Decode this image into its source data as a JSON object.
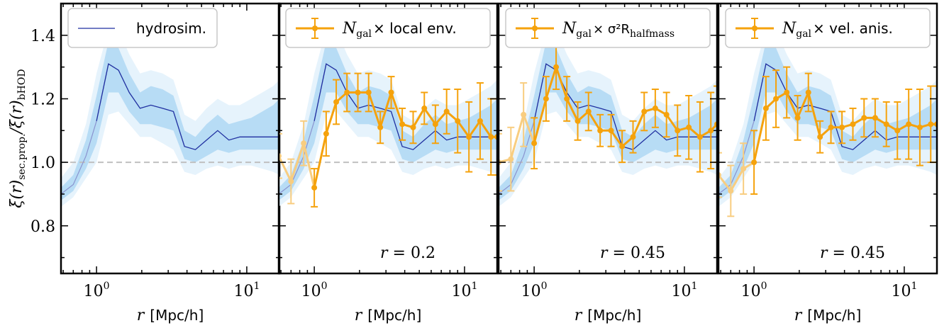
{
  "colors": {
    "hydro_line": "#1f2fa0",
    "hydro_band_inner": "#b7dcf5",
    "hydro_band_outer": "#e6f3fc",
    "orange": "#f5a20c",
    "orange_faint": "#f8cd80",
    "ref_line": "#c0c0c0"
  },
  "ylabel": "ξ(r)sec.prop./ξ(r)bHOD",
  "y_ticks": [
    "0.8",
    "1.0",
    "1.2",
    "1.4"
  ],
  "chart_data": [
    {
      "type": "line",
      "xlabel_var": "r",
      "xlabel_unit": "[Mpc/h]",
      "x_ticks": [
        "10",
        "10"
      ],
      "x_tick_exps": [
        "0",
        "1"
      ],
      "xscale": "log",
      "xlim": [
        0.58,
        16.5
      ],
      "ylim": [
        0.65,
        1.5
      ],
      "legend": {
        "label": "hydrosim.",
        "placement": "top-left"
      },
      "annotation": "",
      "series": []
    },
    {
      "type": "line",
      "xlabel_var": "r",
      "xlabel_unit": "[Mpc/h]",
      "x_ticks": [
        "10",
        "10"
      ],
      "x_tick_exps": [
        "0",
        "1"
      ],
      "xscale": "log",
      "xlim": [
        0.58,
        16.5
      ],
      "ylim": [
        0.65,
        1.5
      ],
      "legend": {
        "math": "N",
        "sub": "gal",
        "rest": "× local env.",
        "placement": "top"
      },
      "annotation": "r = 0.2",
      "series": [
        {
          "x": [
            0.58,
            0.7,
            0.85,
            1.0,
            1.2,
            1.4,
            1.65,
            1.95,
            2.3,
            2.75,
            3.25,
            3.85,
            4.55,
            5.4,
            6.4,
            7.6,
            9.0,
            10.7,
            12.7,
            15.0,
            16.5
          ],
          "y": [
            1.02,
            0.94,
            1.06,
            0.92,
            1.09,
            1.19,
            1.22,
            1.22,
            1.22,
            1.11,
            1.22,
            1.12,
            1.11,
            1.17,
            1.12,
            1.16,
            1.13,
            1.08,
            1.13,
            1.08,
            1.08
          ],
          "err": [
            0.07,
            0.07,
            0.07,
            0.06,
            0.07,
            0.07,
            0.06,
            0.06,
            0.06,
            0.05,
            0.05,
            0.05,
            0.05,
            0.05,
            0.06,
            0.07,
            0.1,
            0.11,
            0.12,
            0.12,
            0.12
          ]
        }
      ]
    },
    {
      "type": "line",
      "xlabel_var": "r",
      "xlabel_unit": "[Mpc/h]",
      "x_ticks": [
        "10",
        "10"
      ],
      "x_tick_exps": [
        "0",
        "1"
      ],
      "xscale": "log",
      "xlim": [
        0.58,
        16.5
      ],
      "ylim": [
        0.65,
        1.5
      ],
      "legend": {
        "math": "N",
        "sub": "gal",
        "rest": "× σ²R",
        "sub2": "halfmass",
        "placement": "top"
      },
      "annotation": "r = 0.45",
      "series": [
        {
          "x": [
            0.58,
            0.7,
            0.85,
            1.0,
            1.2,
            1.4,
            1.65,
            1.95,
            2.3,
            2.75,
            3.25,
            3.85,
            4.55,
            5.4,
            6.4,
            7.6,
            9.0,
            10.7,
            12.7,
            15.0,
            16.5
          ],
          "y": [
            1.0,
            1.01,
            1.15,
            1.06,
            1.2,
            1.3,
            1.2,
            1.13,
            1.16,
            1.1,
            1.1,
            1.05,
            1.08,
            1.16,
            1.17,
            1.15,
            1.1,
            1.11,
            1.08,
            1.1,
            1.12
          ],
          "err": [
            0.09,
            0.1,
            0.1,
            0.08,
            0.07,
            0.07,
            0.07,
            0.06,
            0.06,
            0.05,
            0.05,
            0.05,
            0.05,
            0.06,
            0.06,
            0.07,
            0.08,
            0.1,
            0.11,
            0.12,
            0.12
          ]
        }
      ]
    },
    {
      "type": "line",
      "xlabel_var": "r",
      "xlabel_unit": "[Mpc/h]",
      "x_ticks": [
        "10",
        "10"
      ],
      "x_tick_exps": [
        "0",
        "1"
      ],
      "xscale": "log",
      "xlim": [
        0.58,
        16.5
      ],
      "ylim": [
        0.65,
        1.5
      ],
      "legend": {
        "math": "N",
        "sub": "gal",
        "rest": "× vel. anis.",
        "placement": "top"
      },
      "annotation": "r = 0.45",
      "series": [
        {
          "x": [
            0.58,
            0.7,
            0.85,
            1.0,
            1.2,
            1.4,
            1.65,
            1.95,
            2.3,
            2.75,
            3.25,
            3.85,
            4.55,
            5.4,
            6.4,
            7.6,
            9.0,
            10.7,
            12.7,
            15.0,
            16.5
          ],
          "y": [
            0.96,
            0.91,
            0.98,
            1.0,
            1.17,
            1.2,
            1.22,
            1.14,
            1.22,
            1.08,
            1.11,
            1.11,
            1.12,
            1.14,
            1.14,
            1.12,
            1.1,
            1.12,
            1.11,
            1.12,
            1.12
          ],
          "err": [
            0.07,
            0.08,
            0.08,
            0.1,
            0.1,
            0.09,
            0.08,
            0.07,
            0.06,
            0.05,
            0.05,
            0.05,
            0.05,
            0.06,
            0.06,
            0.07,
            0.09,
            0.11,
            0.12,
            0.12,
            0.12
          ]
        }
      ]
    }
  ],
  "hydro_reference": {
    "x": [
      0.58,
      0.7,
      0.85,
      1.0,
      1.2,
      1.4,
      1.65,
      1.95,
      2.3,
      2.75,
      3.25,
      3.85,
      4.55,
      5.4,
      6.4,
      7.6,
      9.0,
      10.7,
      12.7,
      15.0,
      16.5
    ],
    "y": [
      0.9,
      0.93,
      1.02,
      1.13,
      1.31,
      1.29,
      1.22,
      1.17,
      1.18,
      1.17,
      1.16,
      1.05,
      1.04,
      1.07,
      1.1,
      1.07,
      1.08,
      1.08,
      1.08,
      1.08,
      1.08
    ],
    "inner_lo": [
      0.88,
      0.91,
      0.98,
      1.06,
      1.22,
      1.22,
      1.16,
      1.12,
      1.12,
      1.11,
      1.1,
      1.01,
      1.0,
      1.02,
      1.04,
      1.03,
      1.04,
      1.04,
      1.04,
      1.04,
      1.04
    ],
    "inner_hi": [
      0.92,
      0.96,
      1.07,
      1.21,
      1.38,
      1.36,
      1.28,
      1.22,
      1.24,
      1.23,
      1.21,
      1.1,
      1.08,
      1.12,
      1.15,
      1.12,
      1.13,
      1.14,
      1.16,
      1.18,
      1.2
    ],
    "outer_lo": [
      0.86,
      0.89,
      0.95,
      1.0,
      1.15,
      1.16,
      1.12,
      1.08,
      1.08,
      1.06,
      1.04,
      0.97,
      0.96,
      0.98,
      0.99,
      0.98,
      0.99,
      0.99,
      0.98,
      0.97,
      0.96
    ],
    "outer_hi": [
      0.95,
      1.0,
      1.12,
      1.28,
      1.42,
      1.42,
      1.34,
      1.28,
      1.29,
      1.28,
      1.26,
      1.15,
      1.13,
      1.17,
      1.2,
      1.18,
      1.18,
      1.2,
      1.22,
      1.24,
      1.26
    ],
    "faint_below_x": 1.05
  },
  "ref_value": 1.0
}
